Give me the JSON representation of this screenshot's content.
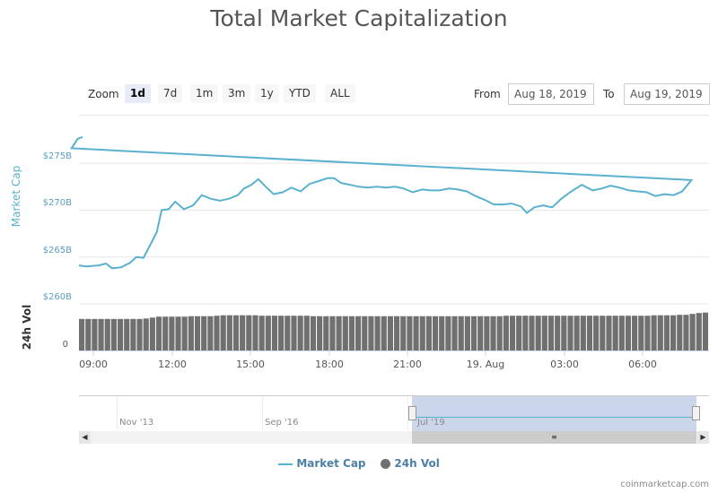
{
  "title": "Total Market Capitalization",
  "range_selector": {
    "zoom_label": "Zoom",
    "buttons": [
      "1d",
      "7d",
      "1m",
      "3m",
      "1y",
      "YTD",
      "ALL"
    ],
    "selected": "1d",
    "from_label": "From",
    "from_value": "Aug 18, 2019",
    "to_label": "To",
    "to_value": "Aug 19, 2019"
  },
  "chart_data": {
    "type": "line",
    "title": "Total Market Capitalization",
    "ylabel": "Market Cap",
    "ylim": [
      260,
      277.8
    ],
    "y_unit": "$B",
    "y_ticks": [
      "$275B",
      "$270B",
      "$265B",
      "$260B"
    ],
    "x_ticks": [
      "09:00",
      "12:00",
      "15:00",
      "18:00",
      "21:00",
      "19. Aug",
      "03:00",
      "06:00"
    ],
    "grid": true,
    "legend": "bottom",
    "series": [
      {
        "name": "Market Cap",
        "color": "#5ab1cf",
        "x": [
          "08:27",
          "08:44",
          "09:12",
          "09:29",
          "09:43",
          "10:04",
          "10:25",
          "10:39",
          "10:55",
          "11:12",
          "11:26",
          "11:37",
          "11:53",
          "12:08",
          "12:28",
          "12:49",
          "13:09",
          "13:30",
          "13:51",
          "14:11",
          "14:32",
          "14:46",
          "15:03",
          "15:19",
          "15:36",
          "15:54",
          "16:15",
          "16:35",
          "16:56",
          "17:17",
          "17:38",
          "17:58",
          "18:13",
          "18:29",
          "18:50",
          "19:10",
          "19:31",
          "19:52",
          "20:12",
          "20:33",
          "20:53",
          "21:14",
          "21:35",
          "21:55",
          "22:16",
          "22:37",
          "22:57",
          "23:18",
          "23:38",
          "23:59",
          "00:20",
          "00:41",
          "01:01",
          "01:22",
          "01:36",
          "01:53",
          "02:13",
          "02:34",
          "02:55",
          "03:15",
          "03:42",
          "04:07",
          "04:28",
          "04:48",
          "05:09",
          "05:30",
          "05:50",
          "06:11",
          "06:31",
          "06:52",
          "07:13",
          "07:33",
          "07:54",
          "08:10",
          "08:24",
          "08:35"
        ],
        "values": [
          264.1,
          264.0,
          264.1,
          264.3,
          263.8,
          263.9,
          264.4,
          265.0,
          264.9,
          266.4,
          267.7,
          270.0,
          270.1,
          270.9,
          270.1,
          270.5,
          271.6,
          271.2,
          271.0,
          271.2,
          271.6,
          272.3,
          272.7,
          273.3,
          272.5,
          271.7,
          271.9,
          272.4,
          272.0,
          272.8,
          273.1,
          273.4,
          273.4,
          272.9,
          272.7,
          272.5,
          272.4,
          272.5,
          272.4,
          272.5,
          272.3,
          271.9,
          272.2,
          272.1,
          272.1,
          272.3,
          272.2,
          272.0,
          271.5,
          271.1,
          270.6,
          270.6,
          270.7,
          270.4,
          269.7,
          270.3,
          270.5,
          270.3,
          271.2,
          271.9,
          272.7,
          272.1,
          272.3,
          272.6,
          272.4,
          272.1,
          272.0,
          271.9,
          271.5,
          271.7,
          271.6,
          272.0,
          273.2,
          276.6,
          277.6,
          277.8
        ]
      },
      {
        "name": "24h Vol",
        "color": "#707070",
        "ylabel": "24h Vol",
        "y_ticks": [
          "0"
        ],
        "values_relative": [
          0.69,
          0.69,
          0.69,
          0.69,
          0.69,
          0.69,
          0.69,
          0.69,
          0.69,
          0.69,
          0.7,
          0.72,
          0.74,
          0.74,
          0.74,
          0.74,
          0.74,
          0.75,
          0.75,
          0.75,
          0.75,
          0.76,
          0.77,
          0.77,
          0.77,
          0.77,
          0.77,
          0.77,
          0.76,
          0.76,
          0.76,
          0.76,
          0.76,
          0.76,
          0.76,
          0.76,
          0.75,
          0.75,
          0.75,
          0.75,
          0.75,
          0.75,
          0.75,
          0.75,
          0.75,
          0.75,
          0.75,
          0.75,
          0.75,
          0.75,
          0.75,
          0.75,
          0.75,
          0.75,
          0.75,
          0.75,
          0.75,
          0.75,
          0.75,
          0.75,
          0.75,
          0.75,
          0.75,
          0.75,
          0.75,
          0.75,
          0.76,
          0.76,
          0.76,
          0.76,
          0.76,
          0.76,
          0.76,
          0.76,
          0.76,
          0.76,
          0.76,
          0.76,
          0.76,
          0.76,
          0.76,
          0.76,
          0.76,
          0.76,
          0.76,
          0.76,
          0.76,
          0.76,
          0.76,
          0.77,
          0.77,
          0.77,
          0.77,
          0.78,
          0.78,
          0.8,
          0.82,
          0.83
        ]
      }
    ]
  },
  "navigator": {
    "labels": [
      "Nov '13",
      "Sep '16",
      "Jul '19"
    ],
    "selection_color": "#ccd6eb"
  },
  "legend": {
    "market_cap": "Market Cap",
    "volume": "24h Vol"
  },
  "credit": "coinmarketcap.com"
}
